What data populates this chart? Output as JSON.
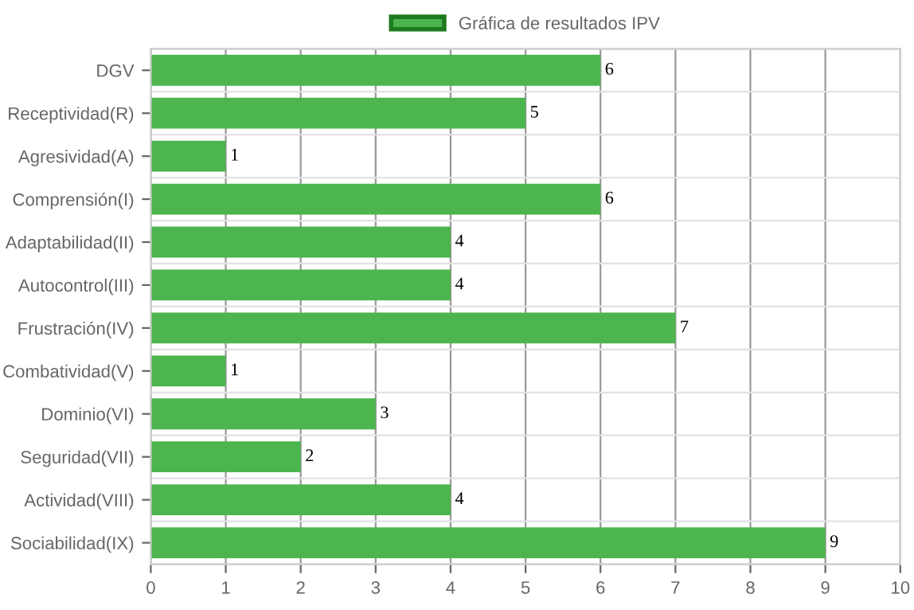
{
  "chart_data": {
    "type": "bar",
    "orientation": "horizontal",
    "categories": [
      "DGV",
      "Receptividad(R)",
      "Agresividad(A)",
      "Comprensión(I)",
      "Adaptabilidad(II)",
      "Autocontrol(III)",
      "Frustración(IV)",
      "Combatividad(V)",
      "Dominio(VI)",
      "Seguridad(VII)",
      "Actividad(VIII)",
      "Sociabilidad(IX)"
    ],
    "series": [
      {
        "name": "Gráfica de resultados IPV",
        "color": "#4db54d",
        "values": [
          6,
          5,
          1,
          6,
          4,
          4,
          7,
          1,
          3,
          2,
          4,
          9
        ]
      }
    ],
    "xlim": [
      0,
      10
    ],
    "xticks": [
      0,
      1,
      2,
      3,
      4,
      5,
      6,
      7,
      8,
      9,
      10
    ],
    "grid": true,
    "legend": "top",
    "data_labels": true
  }
}
